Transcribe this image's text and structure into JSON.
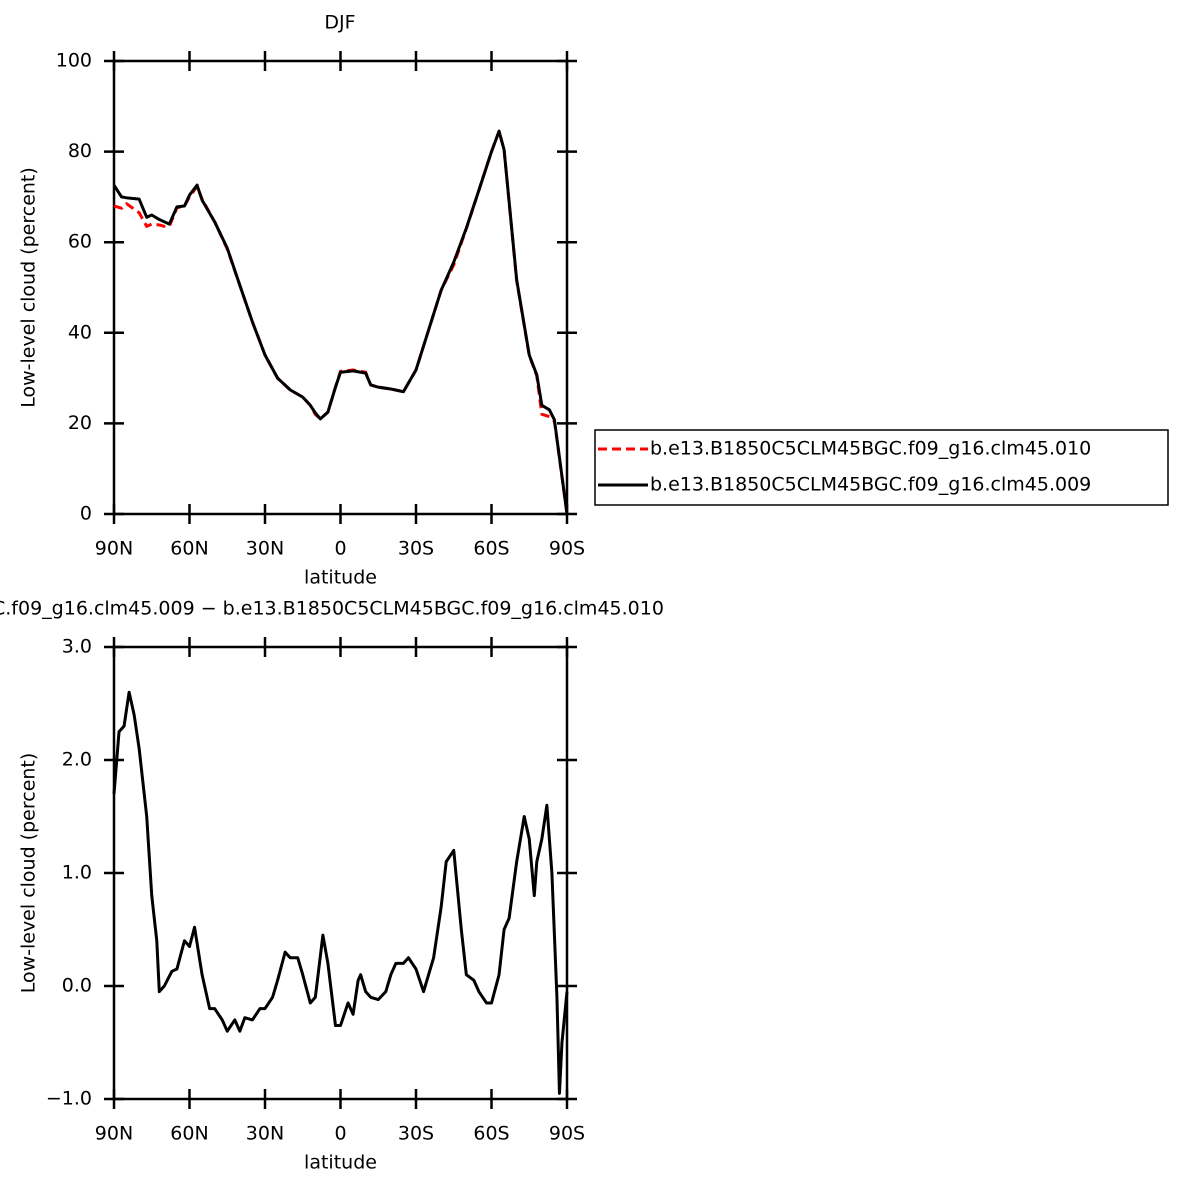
{
  "chart_data": [
    {
      "type": "line",
      "title": "DJF",
      "x_label": "latitude",
      "y_label": "Low-level cloud (percent)",
      "x": [
        90,
        87,
        85,
        80,
        77,
        75,
        72,
        70,
        68,
        65,
        62,
        60,
        57,
        55,
        50,
        45,
        40,
        35,
        30,
        25,
        20,
        15,
        12,
        10,
        8,
        5,
        2,
        0,
        -5,
        -10,
        -12,
        -15,
        -20,
        -25,
        -30,
        -35,
        -40,
        -45,
        -50,
        -55,
        -60,
        -63,
        -65,
        -70,
        -75,
        -78,
        -80,
        -83,
        -85,
        -90
      ],
      "series": [
        {
          "name": "b.e13.B1850C5CLM45BGC.f09_g16.clm45.010",
          "color": "#ff0000",
          "line_style": "dashed",
          "values": [
            68,
            67.5,
            68.5,
            66.5,
            63.5,
            64,
            63.8,
            63.5,
            63.5,
            67.6,
            68,
            70,
            72.3,
            69.5,
            64.5,
            58.5,
            50.5,
            42.4,
            35.1,
            30,
            27.4,
            25.8,
            24,
            22,
            21,
            22.5,
            28,
            31.5,
            31.8,
            31.3,
            28.5,
            28,
            27.6,
            27,
            31.8,
            40.6,
            49.4,
            55,
            63,
            71.5,
            80,
            84.5,
            80.4,
            51.5,
            35,
            30.5,
            22,
            21.5,
            20.5,
            0
          ]
        },
        {
          "name": "b.e13.B1850C5CLM45BGC.f09_g16.clm45.009",
          "color": "#000000",
          "line_style": "solid",
          "values": [
            72.6,
            70,
            69.8,
            69.5,
            65.5,
            66,
            65,
            64.5,
            64,
            67.8,
            68,
            70.4,
            72.6,
            69.3,
            64.5,
            58.7,
            50.5,
            42.4,
            35.1,
            30,
            27.4,
            25.8,
            24,
            22.3,
            21,
            22.5,
            28,
            31.3,
            31.6,
            31.1,
            28.5,
            28,
            27.6,
            27,
            31.8,
            40.6,
            49.4,
            55.6,
            63.1,
            71.5,
            80,
            84.5,
            80.4,
            51.7,
            35.1,
            30.7,
            24,
            23,
            20.8,
            0
          ]
        }
      ],
      "xlim": [
        90,
        -90
      ],
      "xticks": [
        {
          "value": 90,
          "label": "90N"
        },
        {
          "value": 60,
          "label": "60N"
        },
        {
          "value": 30,
          "label": "30N"
        },
        0,
        {
          "value": -30,
          "label": "30S"
        },
        {
          "value": -60,
          "label": "60S"
        },
        {
          "value": -90,
          "label": "90S"
        }
      ],
      "ylim": [
        0,
        100
      ],
      "yticks": [
        0,
        20,
        40,
        60,
        80,
        100
      ],
      "legend": "right"
    },
    {
      "type": "line",
      "title": "C.f09_g16.clm45.009 − b.e13.B1850C5CLM45BGC.f09_g16.clm45.010",
      "x_label": "latitude",
      "y_label": "Low-level cloud (percent)",
      "x": [
        90,
        88,
        86,
        84,
        82,
        80,
        77,
        75,
        73,
        72,
        70,
        67,
        65,
        62,
        60,
        58,
        55,
        52,
        50,
        47,
        45,
        42,
        40,
        38,
        35,
        32,
        30,
        27,
        25,
        22,
        20,
        17,
        15,
        12,
        10,
        7,
        5,
        2,
        0,
        -3,
        -5,
        -7,
        -8,
        -10,
        -12,
        -15,
        -18,
        -20,
        -22,
        -25,
        -27,
        -30,
        -33,
        -35,
        -37,
        -40,
        -42,
        -45,
        -48,
        -50,
        -53,
        -55,
        -58,
        -60,
        -63,
        -65,
        -67,
        -70,
        -73,
        -75,
        -77,
        -78,
        -80,
        -82,
        -84,
        -86,
        -87,
        -88,
        -90
      ],
      "values": [
        1.7,
        2.25,
        2.3,
        2.6,
        2.4,
        2.1,
        1.5,
        0.8,
        0.4,
        -0.05,
        0,
        0.13,
        0.15,
        0.4,
        0.35,
        0.52,
        0.1,
        -0.2,
        -0.2,
        -0.3,
        -0.4,
        -0.3,
        -0.4,
        -0.28,
        -0.3,
        -0.2,
        -0.2,
        -0.1,
        0.05,
        0.3,
        0.25,
        0.25,
        0.1,
        -0.15,
        -0.1,
        0.45,
        0.2,
        -0.35,
        -0.35,
        -0.15,
        -0.25,
        0.05,
        0.1,
        -0.05,
        -0.1,
        -0.12,
        -0.05,
        0.1,
        0.2,
        0.2,
        0.25,
        0.15,
        -0.05,
        0.1,
        0.25,
        0.7,
        1.1,
        1.2,
        0.5,
        0.1,
        0.05,
        -0.05,
        -0.15,
        -0.15,
        0.1,
        0.5,
        0.6,
        1.1,
        1.5,
        1.3,
        0.8,
        1.1,
        1.3,
        1.6,
        1.0,
        -0.1,
        -0.95,
        -0.5,
        -0.05
      ],
      "color": "#000000",
      "xlim": [
        90,
        -90
      ],
      "xticks": [
        {
          "value": 90,
          "label": "90N"
        },
        {
          "value": 60,
          "label": "60N"
        },
        {
          "value": 30,
          "label": "30N"
        },
        0,
        {
          "value": -30,
          "label": "30S"
        },
        {
          "value": -60,
          "label": "60S"
        },
        {
          "value": -90,
          "label": "90S"
        }
      ],
      "ylim": [
        -1,
        3
      ],
      "yticks": [
        {
          "value": -1,
          "label": "−1.0"
        },
        {
          "value": 0,
          "label": "0.0"
        },
        {
          "value": 1,
          "label": "1.0"
        },
        {
          "value": 2,
          "label": "2.0"
        },
        {
          "value": 3,
          "label": "3.0"
        }
      ]
    }
  ]
}
